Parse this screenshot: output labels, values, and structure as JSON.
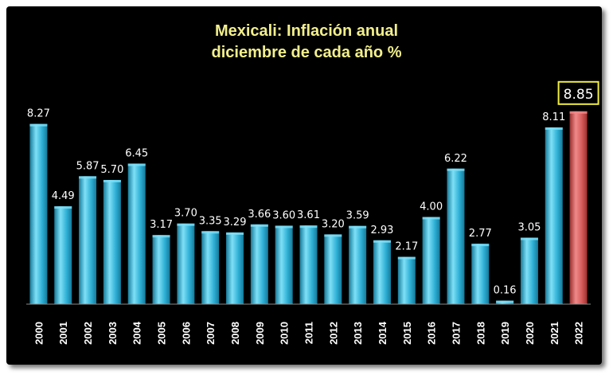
{
  "chart_data": {
    "type": "bar",
    "title_lines": [
      "Mexicali: Inflación anual",
      "diciembre de cada año %"
    ],
    "categories": [
      "2000",
      "2001",
      "2002",
      "2003",
      "2004",
      "2005",
      "2006",
      "2007",
      "2008",
      "2009",
      "2010",
      "2011",
      "2012",
      "2013",
      "2014",
      "2015",
      "2016",
      "2017",
      "2018",
      "2019",
      "2020",
      "2021",
      "2022"
    ],
    "values": [
      8.27,
      4.49,
      5.87,
      5.7,
      6.45,
      3.17,
      3.7,
      3.35,
      3.29,
      3.66,
      3.6,
      3.61,
      3.2,
      3.59,
      2.93,
      2.17,
      4.0,
      6.22,
      2.77,
      0.16,
      3.05,
      8.11,
      8.85
    ],
    "value_labels": [
      "8.27",
      "4.49",
      "5.87",
      "5.70",
      "6.45",
      "3.17",
      "3.70",
      "3.35",
      "3.29",
      "3.66",
      "3.60",
      "3.61",
      "3.20",
      "3.59",
      "2.93",
      "2.17",
      "4.00",
      "6.22",
      "2.77",
      "0.16",
      "3.05",
      "8.11",
      "8.85"
    ],
    "ylim": [
      0,
      9.5
    ],
    "grid": false,
    "colors": {
      "background": "#000000",
      "bar": "#2fb0d6",
      "bar_highlight": "#7fe0f7",
      "bar_dark": "#157a99",
      "highlight_bar": "#d65a5a",
      "highlight_bar_light": "#f08a8a",
      "highlight_bar_dark": "#9a2f2f",
      "title": "#f2ef8c",
      "label": "#ffffff",
      "highlight_box": "#f2ef40"
    },
    "highlight_index": 22
  }
}
